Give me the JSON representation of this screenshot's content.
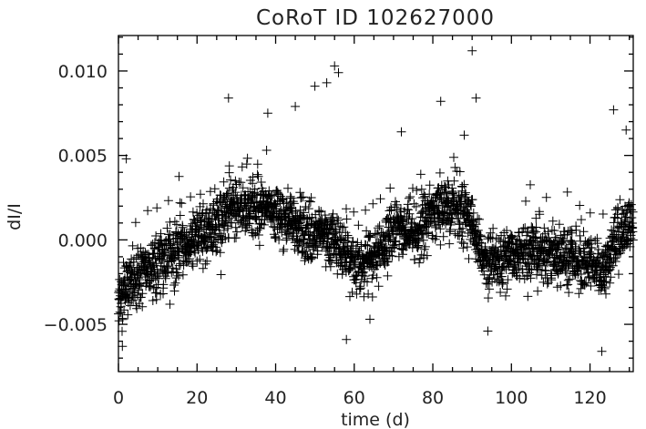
{
  "chart_data": {
    "type": "scatter",
    "title": "CoRoT ID 102627000",
    "xlabel": "time (d)",
    "ylabel": "dI/I",
    "xlim": [
      0,
      131
    ],
    "ylim": [
      -0.0078,
      0.0121
    ],
    "xticks": [
      0,
      20,
      40,
      60,
      80,
      100,
      120
    ],
    "xtick_labels": [
      "0",
      "20",
      "40",
      "60",
      "80",
      "100",
      "120"
    ],
    "yticks": [
      -0.005,
      0.0,
      0.005,
      0.01
    ],
    "ytick_labels": [
      "−0.005",
      "0.000",
      "0.005",
      "0.010"
    ],
    "marker": "+",
    "grid": false,
    "trend": {
      "x": [
        0,
        2,
        5,
        10,
        15,
        20,
        25,
        28,
        32,
        36,
        40,
        45,
        50,
        55,
        58,
        62,
        66,
        70,
        72,
        75,
        78,
        80,
        84,
        87,
        90,
        93,
        96,
        100,
        105,
        110,
        115,
        120,
        123,
        126,
        129,
        131
      ],
      "y": [
        -0.0035,
        -0.0028,
        -0.0022,
        -0.0013,
        -0.0007,
        0.0,
        0.0011,
        0.0018,
        0.002,
        0.0019,
        0.0014,
        0.0008,
        0.0003,
        0.0001,
        -0.0011,
        -0.0013,
        -0.001,
        0.0005,
        0.0006,
        -0.0001,
        0.0011,
        0.0017,
        0.002,
        0.0019,
        0.001,
        -0.0011,
        -0.0012,
        -0.0008,
        -0.001,
        -0.0007,
        -0.0011,
        -0.0015,
        -0.0022,
        -0.0002,
        0.0007,
        0.0009
      ]
    },
    "outliers": [
      {
        "x": 2,
        "y": 0.0048
      },
      {
        "x": 28,
        "y": 0.0084
      },
      {
        "x": 38,
        "y": 0.0075
      },
      {
        "x": 45,
        "y": 0.0079
      },
      {
        "x": 50,
        "y": 0.0091
      },
      {
        "x": 53,
        "y": 0.0093
      },
      {
        "x": 55,
        "y": 0.0103
      },
      {
        "x": 56,
        "y": 0.0099
      },
      {
        "x": 72,
        "y": 0.0064
      },
      {
        "x": 82,
        "y": 0.0082
      },
      {
        "x": 88,
        "y": 0.0062
      },
      {
        "x": 90,
        "y": 0.0112
      },
      {
        "x": 91,
        "y": 0.0084
      },
      {
        "x": 126,
        "y": 0.0077
      },
      {
        "x": 58,
        "y": -0.0059
      },
      {
        "x": 94,
        "y": -0.0054
      },
      {
        "x": 123,
        "y": -0.0066
      },
      {
        "x": 1,
        "y": -0.0063
      },
      {
        "x": 64,
        "y": -0.0047
      }
    ],
    "n_points": 2600
  }
}
